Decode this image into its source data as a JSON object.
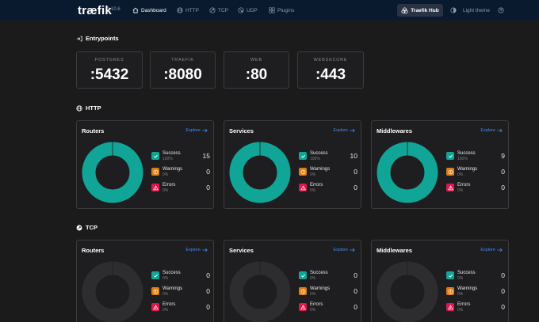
{
  "app": {
    "logo": "træfik",
    "version": "2.10.6"
  },
  "nav": {
    "items": [
      {
        "label": "Dashboard",
        "icon": "home-icon",
        "active": true
      },
      {
        "label": "HTTP",
        "icon": "globe-icon",
        "active": false
      },
      {
        "label": "TCP",
        "icon": "tcp-icon",
        "active": false
      },
      {
        "label": "UDP",
        "icon": "udp-icon",
        "active": false
      },
      {
        "label": "Plugins",
        "icon": "plugins-icon",
        "active": false
      }
    ],
    "hub_button": "Traefik Hub",
    "theme_toggle": "Light theme"
  },
  "entrypoints": {
    "title": "Entrypoints",
    "items": [
      {
        "name": "POSTGRES",
        "port": ":5432"
      },
      {
        "name": "TRAEFIK",
        "port": ":8080"
      },
      {
        "name": "WEB",
        "port": ":80"
      },
      {
        "name": "WEBSECURE",
        "port": ":443"
      }
    ]
  },
  "http": {
    "title": "HTTP",
    "cards": [
      {
        "title": "Routers",
        "explore": "Explore",
        "stats": [
          {
            "label": "Success",
            "pct": "100%",
            "count": "15"
          },
          {
            "label": "Warnings",
            "pct": "0%",
            "count": "0"
          },
          {
            "label": "Errors",
            "pct": "0%",
            "count": "0"
          }
        ]
      },
      {
        "title": "Services",
        "explore": "Explore",
        "stats": [
          {
            "label": "Success",
            "pct": "100%",
            "count": "10"
          },
          {
            "label": "Warnings",
            "pct": "0%",
            "count": "0"
          },
          {
            "label": "Errors",
            "pct": "0%",
            "count": "0"
          }
        ]
      },
      {
        "title": "Middlewares",
        "explore": "Explore",
        "stats": [
          {
            "label": "Success",
            "pct": "100%",
            "count": "9"
          },
          {
            "label": "Warnings",
            "pct": "0%",
            "count": "0"
          },
          {
            "label": "Errors",
            "pct": "0%",
            "count": "0"
          }
        ]
      }
    ]
  },
  "tcp": {
    "title": "TCP",
    "cards": [
      {
        "title": "Routers",
        "explore": "Explore",
        "stats": [
          {
            "label": "Success",
            "pct": "0%",
            "count": "0"
          },
          {
            "label": "Warnings",
            "pct": "0%",
            "count": "0"
          },
          {
            "label": "Errors",
            "pct": "0%",
            "count": "0"
          }
        ]
      },
      {
        "title": "Services",
        "explore": "Explore",
        "stats": [
          {
            "label": "Success",
            "pct": "0%",
            "count": "0"
          },
          {
            "label": "Warnings",
            "pct": "0%",
            "count": "0"
          },
          {
            "label": "Errors",
            "pct": "0%",
            "count": "0"
          }
        ]
      },
      {
        "title": "Middlewares",
        "explore": "Explore",
        "stats": [
          {
            "label": "Success",
            "pct": "0%",
            "count": "0"
          },
          {
            "label": "Warnings",
            "pct": "0%",
            "count": "0"
          },
          {
            "label": "Errors",
            "pct": "0%",
            "count": "0"
          }
        ]
      }
    ]
  },
  "colors": {
    "success": "#10a597",
    "warning": "#db7d11",
    "error": "#e0164d",
    "empty": "#2d2d2f",
    "accent": "#3b8ff0",
    "nav_bg": "#0a1a2e"
  }
}
